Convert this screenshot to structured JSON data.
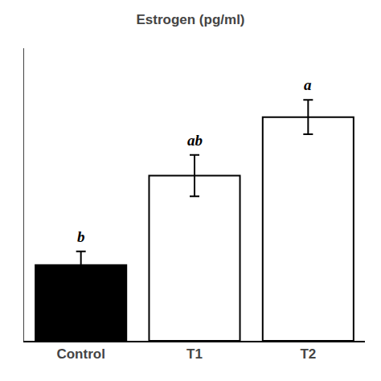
{
  "chart_data": {
    "type": "bar",
    "title": "Estrogen (pg/ml)",
    "categories": [
      "Control",
      "T1",
      "T2"
    ],
    "values": [
      22,
      48,
      65
    ],
    "errors": [
      4.0,
      6.0,
      5.0
    ],
    "colors": [
      "#000000",
      "#ffffff",
      "#ffffff"
    ],
    "annotations": [
      {
        "category": "Control",
        "text": "b"
      },
      {
        "category": "T1",
        "text": "ab"
      },
      {
        "category": "T2",
        "text": "a"
      }
    ],
    "ylim": [
      0,
      85
    ],
    "grid": false,
    "tick_labels": "x"
  }
}
